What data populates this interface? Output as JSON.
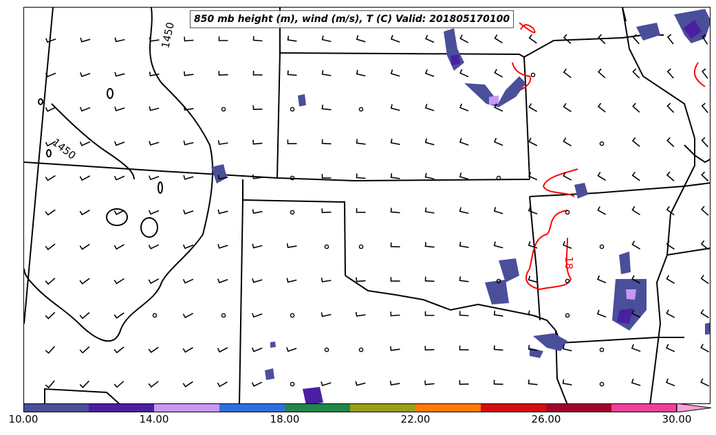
{
  "title": "850 mb height (m), wind (m/s), T (C) Valid: 201805170100",
  "contour_labels": {
    "height_a": "1450",
    "height_b": "1450",
    "temperature": "18"
  },
  "colorbar": {
    "min": 10,
    "max": 30,
    "colors": [
      "#4a4f9a",
      "#4b1fa3",
      "#c997f5",
      "#2f6fdc",
      "#22864a",
      "#9a9e18",
      "#ff7a00",
      "#d40d0d",
      "#a3022a",
      "#f0409a"
    ],
    "extend_color": "#ff9ed6",
    "tick_labels": [
      "10.00",
      "14.00",
      "18.00",
      "22.00",
      "26.00",
      "30.00"
    ]
  },
  "colors": {
    "border": "#000000",
    "temperature_contour": "#ff0000",
    "height_contour": "#000000"
  }
}
